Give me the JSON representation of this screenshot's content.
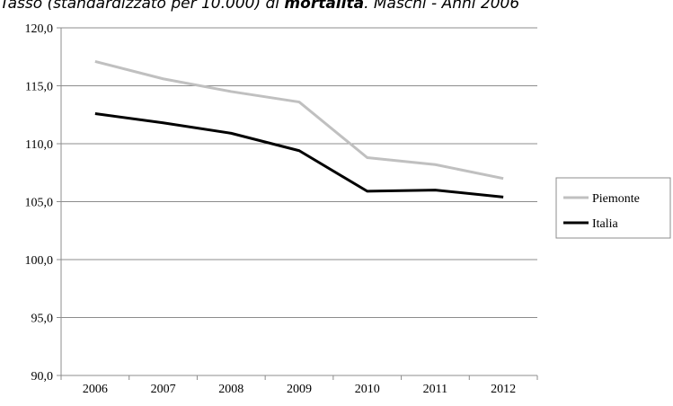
{
  "title": {
    "before": "Tasso (standardizzato per 10.000) di ",
    "bold": "mortalità",
    "after": ". Maschi - Anni 2006"
  },
  "chart_data": {
    "type": "line",
    "x": [
      "2006",
      "2007",
      "2008",
      "2009",
      "2010",
      "2011",
      "2012"
    ],
    "series": [
      {
        "name": "Piemonte",
        "color": "#c0c0c0",
        "values": [
          117.1,
          115.6,
          114.5,
          113.6,
          108.8,
          108.2,
          107.0
        ]
      },
      {
        "name": "Italia",
        "color": "#000000",
        "values": [
          112.6,
          111.8,
          110.9,
          109.4,
          105.9,
          106.0,
          105.4
        ]
      }
    ],
    "ylim": [
      90,
      120
    ],
    "yticks": [
      "90,0",
      "95,0",
      "100,0",
      "105,0",
      "110,0",
      "115,0",
      "120,0"
    ],
    "grid": true,
    "legend": "right"
  }
}
